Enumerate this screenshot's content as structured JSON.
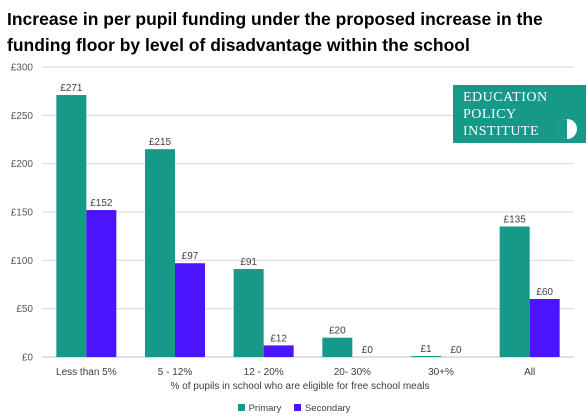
{
  "title_lines": [
    "Increase in per pupil funding under the proposed increase in the",
    "funding floor by level of disadvantage within the school"
  ],
  "logo": {
    "lines": [
      "EDUCATION",
      "POLICY",
      "INSTITUTE"
    ],
    "color": "#17998a"
  },
  "colors": {
    "primary": "#17998a",
    "secondary": "#4b14fc",
    "grid": "#d9d9d9",
    "axis_text": "#595959"
  },
  "chart_data": {
    "type": "bar",
    "title": "Increase in per pupil funding under the proposed increase in the funding floor by level of disadvantage within the school",
    "xlabel": "% of pupils in school who are eligible for free school meals",
    "ylabel": "",
    "categories": [
      "Less than 5%",
      "5 - 12%",
      "12 - 20%",
      "20- 30%",
      "30+%",
      "All"
    ],
    "series": [
      {
        "name": "Primary",
        "values": [
          271,
          215,
          91,
          20,
          1,
          135
        ],
        "labels": [
          "£271",
          "£215",
          "£91",
          "£20",
          "£1",
          "£135"
        ]
      },
      {
        "name": "Secondary",
        "values": [
          152,
          97,
          12,
          0,
          0,
          60
        ],
        "labels": [
          "£152",
          "£97",
          "£12",
          "£0",
          "£0",
          "£60"
        ]
      }
    ],
    "ylim": [
      0,
      300
    ],
    "yticks": [
      0,
      50,
      100,
      150,
      200,
      250,
      300
    ],
    "ytick_labels": [
      "£0",
      "£50",
      "£100",
      "£150",
      "£200",
      "£250",
      "£300"
    ],
    "grid": true,
    "legend_position": "bottom"
  }
}
